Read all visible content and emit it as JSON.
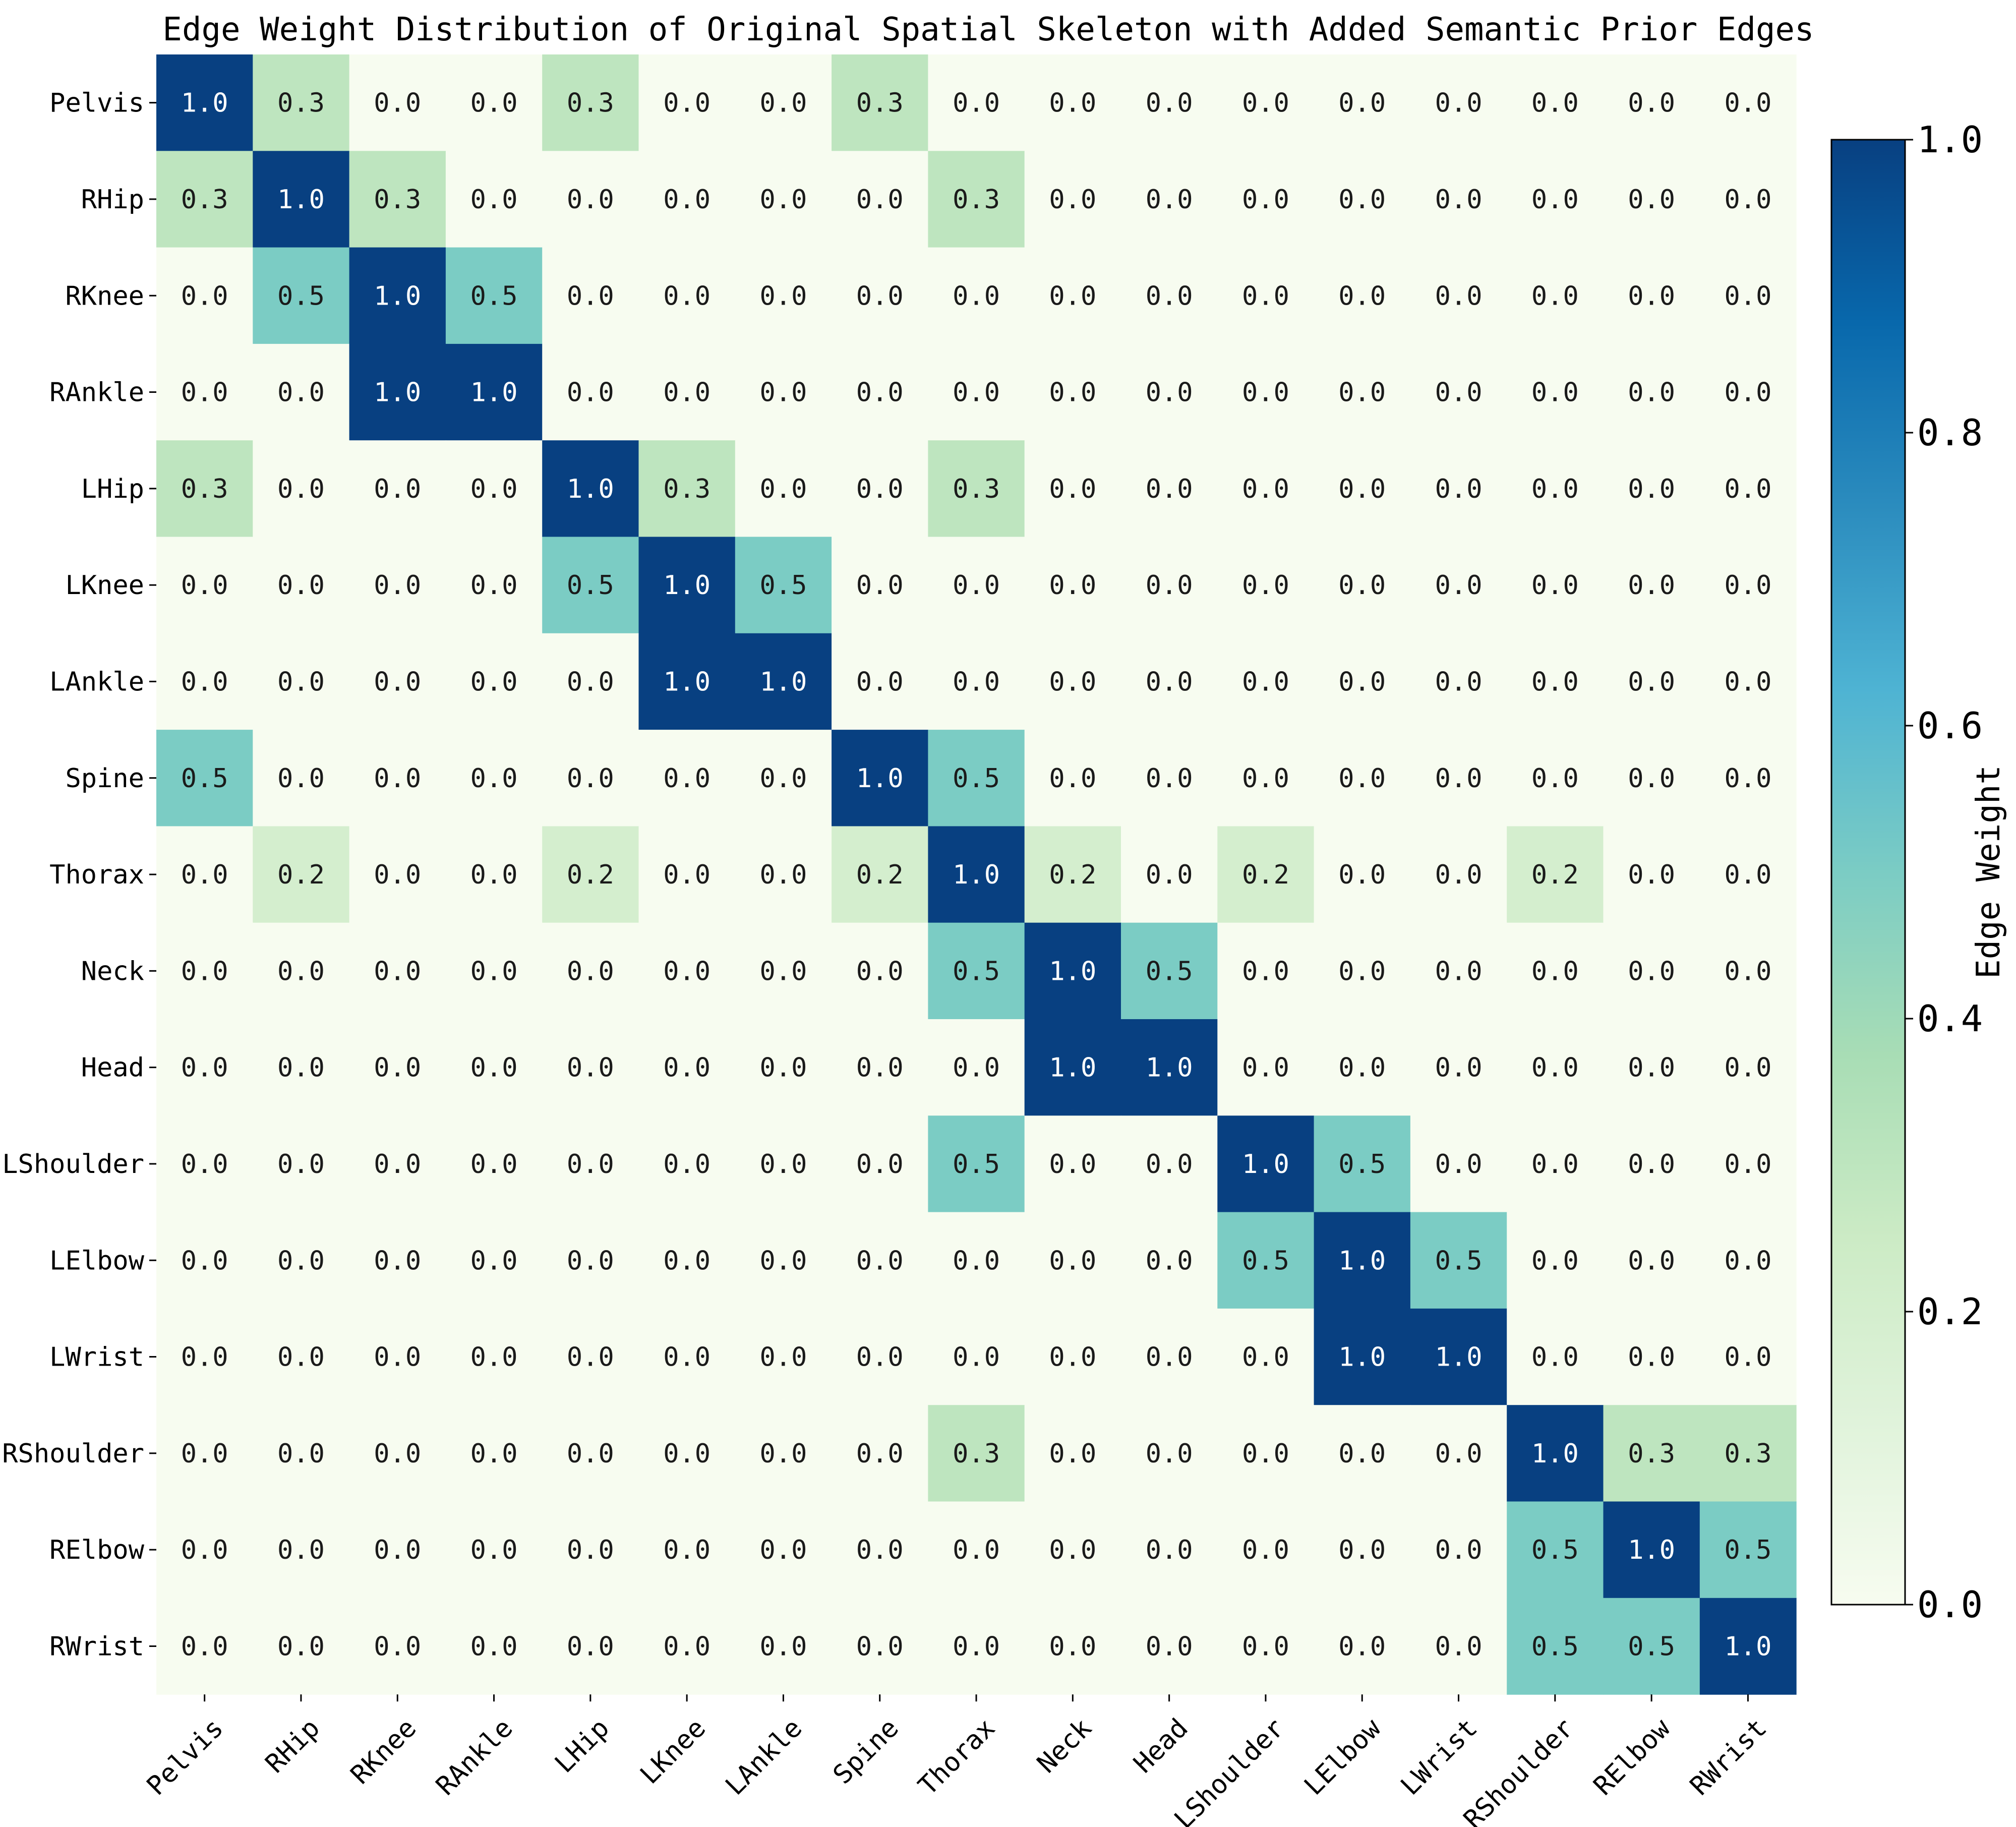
{
  "chart_data": {
    "type": "heatmap",
    "title": "Edge Weight Distribution of Original Spatial Skeleton with Added Semantic Prior Edges",
    "rows": [
      "Pelvis",
      "RHip",
      "RKnee",
      "RAnkle",
      "LHip",
      "LKnee",
      "LAnkle",
      "Spine",
      "Thorax",
      "Neck",
      "Head",
      "LShoulder",
      "LElbow",
      "LWrist",
      "RShoulder",
      "RElbow",
      "RWrist"
    ],
    "columns": [
      "Pelvis",
      "RHip",
      "RKnee",
      "RAnkle",
      "LHip",
      "LKnee",
      "LAnkle",
      "Spine",
      "Thorax",
      "Neck",
      "Head",
      "LShoulder",
      "LElbow",
      "LWrist",
      "RShoulder",
      "RElbow",
      "RWrist"
    ],
    "values": [
      [
        1.0,
        0.3,
        0.0,
        0.0,
        0.3,
        0.0,
        0.0,
        0.3,
        0.0,
        0.0,
        0.0,
        0.0,
        0.0,
        0.0,
        0.0,
        0.0,
        0.0
      ],
      [
        0.3,
        1.0,
        0.3,
        0.0,
        0.0,
        0.0,
        0.0,
        0.0,
        0.3,
        0.0,
        0.0,
        0.0,
        0.0,
        0.0,
        0.0,
        0.0,
        0.0
      ],
      [
        0.0,
        0.5,
        1.0,
        0.5,
        0.0,
        0.0,
        0.0,
        0.0,
        0.0,
        0.0,
        0.0,
        0.0,
        0.0,
        0.0,
        0.0,
        0.0,
        0.0
      ],
      [
        0.0,
        0.0,
        1.0,
        1.0,
        0.0,
        0.0,
        0.0,
        0.0,
        0.0,
        0.0,
        0.0,
        0.0,
        0.0,
        0.0,
        0.0,
        0.0,
        0.0
      ],
      [
        0.3,
        0.0,
        0.0,
        0.0,
        1.0,
        0.3,
        0.0,
        0.0,
        0.3,
        0.0,
        0.0,
        0.0,
        0.0,
        0.0,
        0.0,
        0.0,
        0.0
      ],
      [
        0.0,
        0.0,
        0.0,
        0.0,
        0.5,
        1.0,
        0.5,
        0.0,
        0.0,
        0.0,
        0.0,
        0.0,
        0.0,
        0.0,
        0.0,
        0.0,
        0.0
      ],
      [
        0.0,
        0.0,
        0.0,
        0.0,
        0.0,
        1.0,
        1.0,
        0.0,
        0.0,
        0.0,
        0.0,
        0.0,
        0.0,
        0.0,
        0.0,
        0.0,
        0.0
      ],
      [
        0.5,
        0.0,
        0.0,
        0.0,
        0.0,
        0.0,
        0.0,
        1.0,
        0.5,
        0.0,
        0.0,
        0.0,
        0.0,
        0.0,
        0.0,
        0.0,
        0.0
      ],
      [
        0.0,
        0.2,
        0.0,
        0.0,
        0.2,
        0.0,
        0.0,
        0.2,
        1.0,
        0.2,
        0.0,
        0.2,
        0.0,
        0.0,
        0.2,
        0.0,
        0.0
      ],
      [
        0.0,
        0.0,
        0.0,
        0.0,
        0.0,
        0.0,
        0.0,
        0.0,
        0.5,
        1.0,
        0.5,
        0.0,
        0.0,
        0.0,
        0.0,
        0.0,
        0.0
      ],
      [
        0.0,
        0.0,
        0.0,
        0.0,
        0.0,
        0.0,
        0.0,
        0.0,
        0.0,
        1.0,
        1.0,
        0.0,
        0.0,
        0.0,
        0.0,
        0.0,
        0.0
      ],
      [
        0.0,
        0.0,
        0.0,
        0.0,
        0.0,
        0.0,
        0.0,
        0.0,
        0.5,
        0.0,
        0.0,
        1.0,
        0.5,
        0.0,
        0.0,
        0.0,
        0.0
      ],
      [
        0.0,
        0.0,
        0.0,
        0.0,
        0.0,
        0.0,
        0.0,
        0.0,
        0.0,
        0.0,
        0.0,
        0.5,
        1.0,
        0.5,
        0.0,
        0.0,
        0.0
      ],
      [
        0.0,
        0.0,
        0.0,
        0.0,
        0.0,
        0.0,
        0.0,
        0.0,
        0.0,
        0.0,
        0.0,
        0.0,
        1.0,
        1.0,
        0.0,
        0.0,
        0.0
      ],
      [
        0.0,
        0.0,
        0.0,
        0.0,
        0.0,
        0.0,
        0.0,
        0.0,
        0.3,
        0.0,
        0.0,
        0.0,
        0.0,
        0.0,
        1.0,
        0.3,
        0.3
      ],
      [
        0.0,
        0.0,
        0.0,
        0.0,
        0.0,
        0.0,
        0.0,
        0.0,
        0.0,
        0.0,
        0.0,
        0.0,
        0.0,
        0.0,
        0.5,
        1.0,
        0.5
      ],
      [
        0.0,
        0.0,
        0.0,
        0.0,
        0.0,
        0.0,
        0.0,
        0.0,
        0.0,
        0.0,
        0.0,
        0.0,
        0.0,
        0.0,
        0.5,
        0.5,
        1.0
      ]
    ],
    "value_format": "0.0",
    "colorbar": {
      "label": "Edge Weight",
      "range": [
        0.0,
        1.0
      ],
      "ticks": [
        "0.0",
        "0.2",
        "0.4",
        "0.6",
        "0.8",
        "1.0"
      ],
      "colormap": "GnBu",
      "stops": [
        [
          0.0,
          "#f7fcf0"
        ],
        [
          0.125,
          "#e0f3db"
        ],
        [
          0.25,
          "#ccebc5"
        ],
        [
          0.375,
          "#a8ddb5"
        ],
        [
          0.5,
          "#7bccc4"
        ],
        [
          0.625,
          "#4eb3d3"
        ],
        [
          0.75,
          "#2b8cbe"
        ],
        [
          0.875,
          "#0868ac"
        ],
        [
          1.0,
          "#084081"
        ]
      ]
    },
    "legend_position": "right",
    "grid": false
  }
}
